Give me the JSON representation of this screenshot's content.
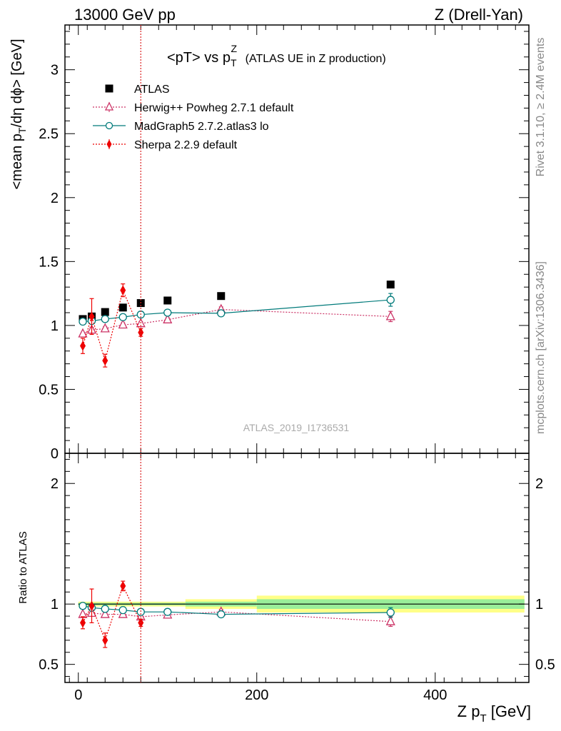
{
  "header": {
    "left": "13000 GeV pp",
    "right": "Z (Drell-Yan)"
  },
  "plot_title": {
    "main": "<pT> vs p",
    "main_sub": "T",
    "main_sup": "Z",
    "suffix": "(ATLAS UE in Z production)"
  },
  "watermark": "ATLAS_2019_I1736531",
  "side_labels": {
    "rivet": "Rivet 3.1.10, ≥ 2.4M events",
    "mcplots": "mcplots.cern.ch [arXiv:1306.3436]"
  },
  "axes": {
    "main_ylabel_pre": "<mean p",
    "main_ylabel_sub": "T",
    "main_ylabel_post": "/dη dϕ> [GeV]",
    "ratio_ylabel": "Ratio to ATLAS",
    "xlabel_pre": "Z p",
    "xlabel_sub": "T",
    "xlabel_post": " [GeV]"
  },
  "colors": {
    "data": "#000000",
    "herwig": "#cc3366",
    "madgraph": "#007a7a",
    "sherpa": "#ee0000",
    "band_inner": "#99ee99",
    "band_outer": "#ffff88",
    "vline": "#dd2222"
  },
  "chart_data": {
    "type": "scatter",
    "x_range": [
      -15,
      505
    ],
    "main_ylim": [
      0,
      3.35
    ],
    "ratio_ylim": [
      0.35,
      2.25
    ],
    "main_yticks": [
      0,
      0.5,
      1,
      1.5,
      2,
      2.5,
      3
    ],
    "main_ytick_labels": [
      "0",
      "0.5",
      "1",
      "1.5",
      "2",
      "2.5",
      "3"
    ],
    "ratio_yticks": [
      0.5,
      1,
      2
    ],
    "ratio_ytick_labels": [
      "0.5",
      "1",
      "2"
    ],
    "xticks": [
      0,
      200,
      400
    ],
    "xtick_labels": [
      "0",
      "200",
      "400"
    ],
    "vertical_line_x": 70,
    "legend_position": "top-left",
    "series": [
      {
        "id": "atlas",
        "name": "ATLAS",
        "marker": "square",
        "style": "data",
        "x": [
          5,
          15,
          30,
          50,
          70,
          100,
          160,
          350
        ],
        "y": [
          1.05,
          1.07,
          1.105,
          1.14,
          1.175,
          1.195,
          1.23,
          1.32
        ]
      },
      {
        "id": "herwig",
        "name": "Herwig++ Powheg 2.7.1 default",
        "marker": "triangle-open",
        "style": "dotted",
        "x": [
          5,
          15,
          30,
          50,
          70,
          100,
          160,
          350
        ],
        "y": [
          0.935,
          0.965,
          0.975,
          1.005,
          1.015,
          1.045,
          1.125,
          1.07
        ],
        "yerr": [
          0.01,
          0.02,
          0.015,
          0.015,
          0.015,
          0.015,
          0.02,
          0.04
        ],
        "ratio": [
          0.915,
          0.925,
          0.915,
          0.915,
          0.895,
          0.91,
          0.935,
          0.855
        ],
        "ratio_err": [
          0.01,
          0.02,
          0.015,
          0.015,
          0.015,
          0.015,
          0.02,
          0.04
        ]
      },
      {
        "id": "madgraph",
        "name": "MadGraph5 2.7.2.atlas3 lo",
        "marker": "circle-open",
        "style": "solid",
        "x": [
          5,
          15,
          30,
          50,
          70,
          100,
          160,
          350
        ],
        "y": [
          1.03,
          1.035,
          1.05,
          1.065,
          1.085,
          1.1,
          1.095,
          1.2
        ],
        "yerr": [
          0.005,
          0.005,
          0.005,
          0.005,
          0.005,
          0.005,
          0.005,
          0.05
        ],
        "ratio": [
          0.985,
          0.97,
          0.96,
          0.95,
          0.935,
          0.935,
          0.915,
          0.93
        ],
        "ratio_err": [
          0.005,
          0.005,
          0.005,
          0.005,
          0.005,
          0.005,
          0.005,
          0.04
        ]
      },
      {
        "id": "sherpa",
        "name": "Sherpa 2.2.9 default",
        "marker": "diamond",
        "style": "dotted",
        "x": [
          5,
          15,
          30,
          50,
          70
        ],
        "y": [
          0.84,
          1.07,
          0.725,
          1.275,
          0.945
        ],
        "yerr": [
          0.06,
          0.14,
          0.05,
          0.05,
          0.03
        ],
        "ratio": [
          0.845,
          0.985,
          0.7,
          1.15,
          0.845
        ],
        "ratio_err": [
          0.05,
          0.14,
          0.06,
          0.04,
          0.03
        ]
      }
    ],
    "ratio_bands": [
      {
        "x0": 0,
        "x1": 120,
        "inner": [
          0.99,
          1.01
        ],
        "outer": [
          0.98,
          1.02
        ]
      },
      {
        "x0": 120,
        "x1": 200,
        "inner": [
          0.98,
          1.02
        ],
        "outer": [
          0.96,
          1.04
        ]
      },
      {
        "x0": 200,
        "x1": 500,
        "inner": [
          0.96,
          1.04
        ],
        "outer": [
          0.93,
          1.07
        ]
      }
    ]
  }
}
